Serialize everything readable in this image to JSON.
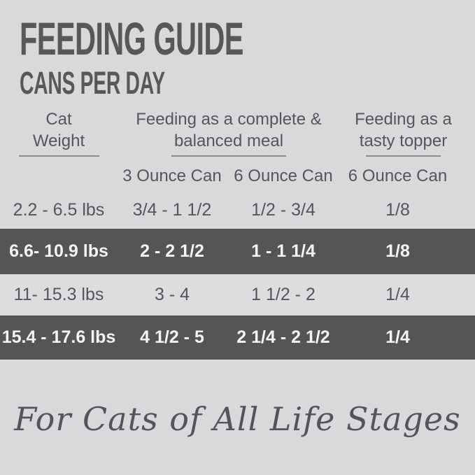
{
  "page": {
    "background_color": "#d8d9da",
    "dark_band_color": "#545557",
    "text_color": "#55565a"
  },
  "header": {
    "title": "FEEDING GUIDE",
    "subtitle": "CANS PER DAY"
  },
  "table": {
    "group_headers": {
      "weight": {
        "line1": "Cat",
        "line2": "Weight"
      },
      "meal": {
        "line1": "Feeding as a complete &",
        "line2": "balanced meal"
      },
      "topper": {
        "line1": "Feeding as a",
        "line2": "tasty topper"
      }
    },
    "subheaders": {
      "meal_3oz": "3 Ounce Can",
      "meal_6oz": "6 Ounce Can",
      "topper_6oz": "6 Ounce Can"
    },
    "rows": [
      {
        "weight": "2.2 - 6.5 lbs",
        "meal_3oz": "3/4 - 1 1/2",
        "meal_6oz": "1/2 - 3/4",
        "topper_6oz": "1/8",
        "highlighted": false
      },
      {
        "weight": "6.6- 10.9 lbs",
        "meal_3oz": "2 - 2 1/2",
        "meal_6oz": "1 - 1 1/4",
        "topper_6oz": "1/8",
        "highlighted": true
      },
      {
        "weight": "11- 15.3 lbs",
        "meal_3oz": "3 - 4",
        "meal_6oz": "1 1/2 - 2",
        "topper_6oz": "1/4",
        "highlighted": false
      },
      {
        "weight": "15.4 - 17.6 lbs",
        "meal_3oz": "4 1/2 - 5",
        "meal_6oz": "2 1/4 - 2 1/2",
        "topper_6oz": "1/4",
        "highlighted": true
      }
    ]
  },
  "footer": {
    "tagline": "For Cats of All Life Stages"
  },
  "chart_data": {
    "type": "table",
    "title": "FEEDING GUIDE",
    "subtitle": "CANS PER DAY",
    "columns": [
      "Cat Weight",
      "Feeding as a complete & balanced meal - 3 Ounce Can",
      "Feeding as a complete & balanced meal - 6 Ounce Can",
      "Feeding as a tasty topper - 6 Ounce Can"
    ],
    "rows": [
      [
        "2.2 - 6.5 lbs",
        "3/4 - 1 1/2",
        "1/2 - 3/4",
        "1/8"
      ],
      [
        "6.6- 10.9 lbs",
        "2 - 2 1/2",
        "1 - 1 1/4",
        "1/8"
      ],
      [
        "11- 15.3 lbs",
        "3 - 4",
        "1 1/2 - 2",
        "1/4"
      ],
      [
        "15.4 - 17.6 lbs",
        "4 1/2 - 5",
        "2 1/4 - 2 1/2",
        "1/4"
      ]
    ],
    "annotations": [
      "For Cats of All Life Stages"
    ],
    "layout": {
      "highlighted_rows": [
        1,
        3
      ],
      "grid": false
    }
  }
}
